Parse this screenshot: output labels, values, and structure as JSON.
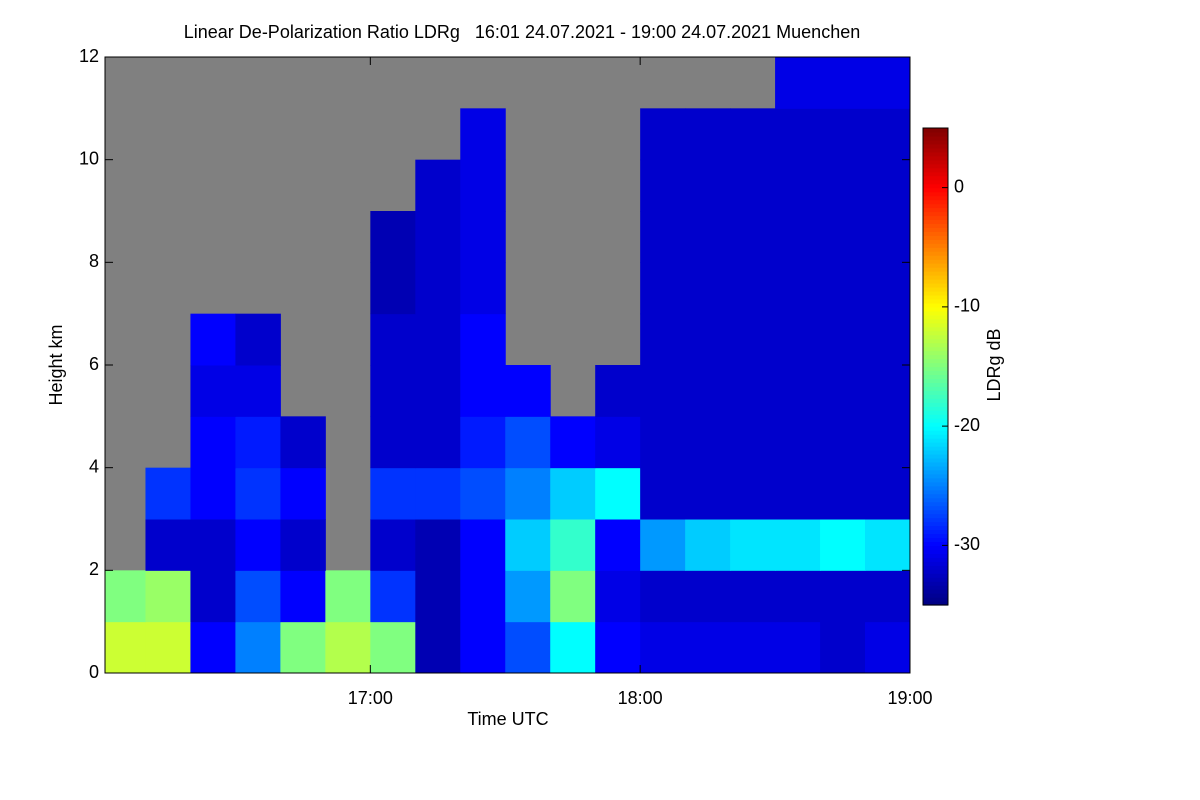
{
  "chart_data": {
    "type": "heatmap",
    "title": "Linear De-Polarization Ratio LDRg   16:01 24.07.2021 - 19:00 24.07.2021 Muenchen",
    "x_label": "Time UTC",
    "y_label": "Height km",
    "xlim": [
      16.0167,
      19.0
    ],
    "xticks": [
      {
        "value": 17,
        "label": "17:00"
      },
      {
        "value": 18,
        "label": "18:00"
      },
      {
        "value": 19,
        "label": "19:00"
      }
    ],
    "ylim": [
      0,
      12
    ],
    "yticks": [
      0,
      2,
      4,
      6,
      8,
      10,
      12
    ],
    "x_bins": [
      16.0167,
      16.1667,
      16.3333,
      16.5,
      16.6667,
      16.8333,
      17,
      17.1667,
      17.3333,
      17.5,
      17.6667,
      17.8333,
      18,
      18.1667,
      18.3333,
      18.5,
      18.6667,
      18.8333,
      19
    ],
    "y_bins": [
      0,
      1,
      2,
      3,
      4,
      5,
      6,
      7,
      8,
      9,
      10,
      11,
      12
    ],
    "z": [
      [
        -12,
        -12,
        -30,
        -25,
        -15,
        -13,
        -15,
        -33,
        -30,
        -27,
        -20,
        -30,
        -31,
        -31,
        -31,
        -31,
        -32,
        -31
      ],
      [
        -15,
        -14,
        -32,
        -27,
        -30,
        -15,
        -28,
        -33,
        -30,
        -24,
        -15,
        -31,
        -32,
        -32,
        -32,
        -32,
        -32,
        -32
      ],
      [
        null,
        -32,
        -32,
        -30,
        -32,
        null,
        -32,
        -33,
        -30,
        -22,
        -18,
        -30,
        -24,
        -22,
        -21,
        -21,
        -20,
        -21
      ],
      [
        null,
        -28,
        -30,
        -28,
        -30,
        null,
        -28,
        -28,
        -27,
        -25,
        -22,
        -20,
        -32,
        -32,
        -32,
        -32,
        -32,
        -32
      ],
      [
        null,
        null,
        -30,
        -29,
        -32,
        null,
        -32,
        -32,
        -29,
        -27,
        -30,
        -31,
        -32,
        -32,
        -32,
        -32,
        -32,
        -32
      ],
      [
        null,
        null,
        -31,
        -31,
        null,
        null,
        -32,
        -32,
        -30,
        -30,
        null,
        -32,
        -32,
        -32,
        -32,
        -32,
        -32,
        -32
      ],
      [
        null,
        null,
        -30,
        -32,
        null,
        null,
        -32,
        -32,
        -30,
        null,
        null,
        null,
        -32,
        -32,
        -32,
        -32,
        -32,
        -32
      ],
      [
        null,
        null,
        null,
        null,
        null,
        null,
        -33,
        -32,
        -31,
        null,
        null,
        null,
        -32,
        -32,
        -32,
        -32,
        -32,
        -32
      ],
      [
        null,
        null,
        null,
        null,
        null,
        null,
        -33,
        -32,
        -31,
        null,
        null,
        null,
        -32,
        -32,
        -32,
        -32,
        -32,
        -32
      ],
      [
        null,
        null,
        null,
        null,
        null,
        null,
        null,
        -32,
        -31,
        null,
        null,
        null,
        -32,
        -32,
        -32,
        -32,
        -32,
        -32
      ],
      [
        null,
        null,
        null,
        null,
        null,
        null,
        null,
        null,
        -31,
        null,
        null,
        null,
        -32,
        -32,
        -32,
        -32,
        -32,
        -32
      ],
      [
        null,
        null,
        null,
        null,
        null,
        null,
        null,
        null,
        null,
        null,
        null,
        null,
        null,
        null,
        null,
        -31,
        -31,
        -31
      ]
    ],
    "colormap": "jet",
    "missing_color": "#808080",
    "colorbar": {
      "label": "LDRg dB",
      "lim": [
        -35,
        5
      ],
      "ticks": [
        0,
        -10,
        -20,
        -30
      ]
    }
  }
}
